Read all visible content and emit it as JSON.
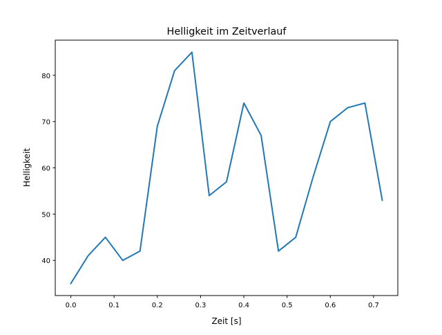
{
  "chart_data": {
    "type": "line",
    "title": "Helligkeit im Zeitverlauf",
    "xlabel": "Zeit [s]",
    "ylabel": "Helligkeit",
    "x": [
      0,
      0.04,
      0.08,
      0.12,
      0.16,
      0.2,
      0.24,
      0.28,
      0.32,
      0.36,
      0.4,
      0.44,
      0.48,
      0.52,
      0.56,
      0.6,
      0.64,
      0.68,
      0.72
    ],
    "series": [
      {
        "name": "Helligkeit",
        "color": "#1f77b4",
        "values": [
          35,
          41,
          45,
          40,
          42,
          69,
          81,
          85,
          54,
          57,
          74,
          67,
          42,
          45,
          58,
          70,
          73,
          74,
          53
        ]
      }
    ],
    "xlim": [
      -0.036,
      0.756
    ],
    "ylim": [
      32.4,
      87.6
    ],
    "xticks": [
      0.0,
      0.1,
      0.2,
      0.3,
      0.4,
      0.5,
      0.6,
      0.7
    ],
    "xtick_labels": [
      "0.0",
      "0.1",
      "0.2",
      "0.3",
      "0.4",
      "0.5",
      "0.6",
      "0.7"
    ],
    "yticks": [
      40,
      50,
      60,
      70,
      80
    ],
    "ytick_labels": [
      "40",
      "50",
      "60",
      "70",
      "80"
    ],
    "grid": false,
    "legend": "none"
  }
}
